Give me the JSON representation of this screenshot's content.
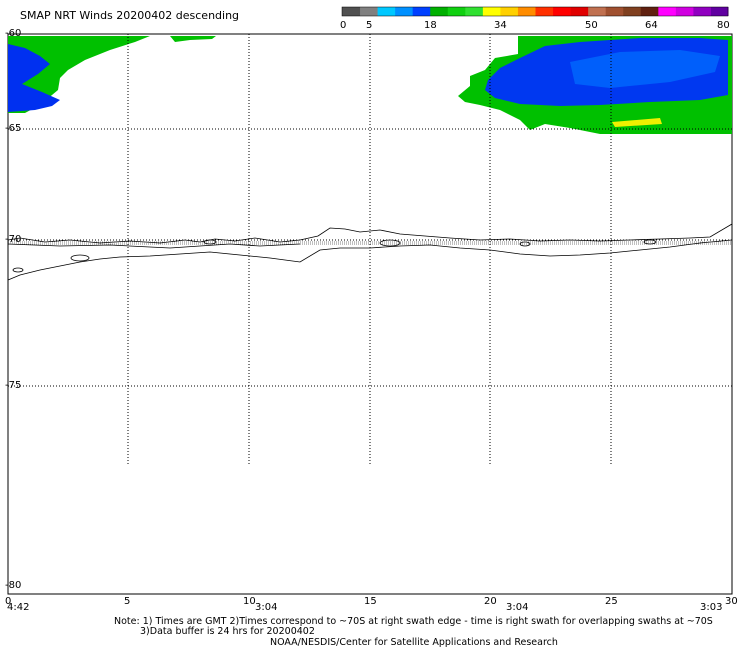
{
  "title": "SMAP NRT Winds  20200402 descending",
  "colorbar": {
    "ticks": [
      "0",
      "5",
      "18",
      "34",
      "50",
      "64",
      "80"
    ],
    "segments": [
      "#505050",
      "#808080",
      "#00c8ff",
      "#0090ff",
      "#0040ff",
      "#00b000",
      "#10d010",
      "#30e030",
      "#ffff00",
      "#ffd000",
      "#ff8c00",
      "#ff3000",
      "#ff0000",
      "#e00000",
      "#c07050",
      "#a05030",
      "#804020",
      "#602010",
      "#ff00ff",
      "#d000e0",
      "#9000c0",
      "#6000a0"
    ]
  },
  "y_axis_labels": [
    "-60",
    "-65",
    "-70",
    "-75",
    "-80"
  ],
  "x_axis_labels": [
    "0",
    "5",
    "10",
    "15",
    "20",
    "25",
    "30"
  ],
  "time_labels": [
    "4:42",
    "3:04",
    "3:04",
    "3:03"
  ],
  "notes": {
    "line1": "Note: 1) Times are GMT 2)Times correspond to ~70S at right swath edge - time is right swath for overlapping swaths at ~70S",
    "line2": "3)Data buffer is 24 hrs for 20200402",
    "line3": "NOAA/NESDIS/Center for Satellite Applications and Research"
  }
}
